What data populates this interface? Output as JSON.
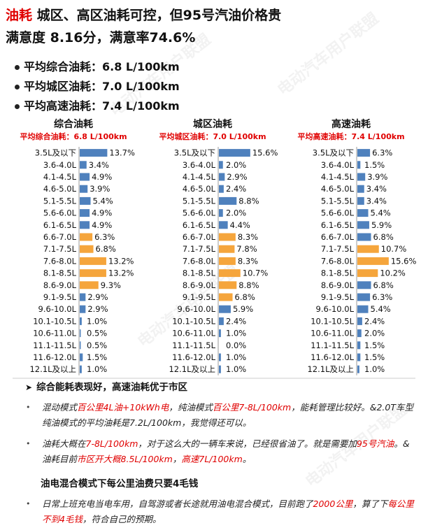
{
  "header": {
    "title_red": "油耗",
    "title_rest": " 城区、高区油耗可控，但95号汽油价格贵",
    "satisfaction": "满意度 8.16分，满意率74.6%"
  },
  "summary": [
    "平均综合油耗：6.8 L/100km",
    "平均城区油耗：7.0 L/100km",
    "平均高速油耗：7.4 L/100km"
  ],
  "watermark": "电动汽车用户联盟",
  "colors": {
    "blue": "#4f81bd",
    "orange": "#f5a53c",
    "red": "#e00000"
  },
  "chart_data": [
    {
      "type": "bar",
      "title": "综合油耗",
      "subtitle": "平均综合油耗：6.8 L/100km",
      "categories": [
        "3.5L及以下",
        "3.6-4.0L",
        "4.1-4.5L",
        "4.6-5.0L",
        "5.1-5.5L",
        "5.6-6.0L",
        "6.1-6.5L",
        "6.6-7.0L",
        "7.1-7.5L",
        "7.6-8.0L",
        "8.1-8.5L",
        "8.6-9.0L",
        "9.1-9.5L",
        "9.6-10.0L",
        "10.1-10.5L",
        "10.6-11.0L",
        "11.1-11.5L",
        "11.6-12.0L",
        "12.1L及以上"
      ],
      "values": [
        13.7,
        3.4,
        4.9,
        3.9,
        5.4,
        4.9,
        4.9,
        6.3,
        6.8,
        13.2,
        13.2,
        9.3,
        2.9,
        2.9,
        1.0,
        0.5,
        0.5,
        1.5,
        1.0
      ],
      "labels": [
        "13.7%",
        "3.4%",
        "4.9%",
        "3.9%",
        "5.4%",
        "4.9%",
        "4.9%",
        "6.3%",
        "6.8%",
        "13.2%",
        "13.2%",
        "9.3%",
        "2.9%",
        "2.9%",
        "1.0%",
        "0.5%",
        "0.5%",
        "1.5%",
        "1.0%"
      ],
      "highlight": [
        7,
        8,
        9,
        10,
        11
      ],
      "ylim": [
        0,
        16
      ]
    },
    {
      "type": "bar",
      "title": "城区油耗",
      "subtitle": "平均城区油耗：7.0 L/100km",
      "categories": [
        "3.5L及以下",
        "3.6-4.0L",
        "4.1-4.5L",
        "4.6-5.0L",
        "5.1-5.5L",
        "5.6-6.0L",
        "6.1-6.5L",
        "6.6-7.0L",
        "7.1-7.5L",
        "7.6-8.0L",
        "8.1-8.5L",
        "8.6-9.0L",
        "9.1-9.5L",
        "9.6-10.0L",
        "10.1-10.5L",
        "10.6-11.0L",
        "11.1-11.5L",
        "11.6-12.0L",
        "12.1L及以上"
      ],
      "values": [
        15.6,
        2.0,
        2.9,
        2.4,
        8.8,
        2.0,
        4.4,
        8.3,
        7.8,
        8.3,
        10.7,
        8.8,
        6.8,
        5.9,
        2.4,
        1.0,
        0.0,
        1.0,
        1.0
      ],
      "labels": [
        "15.6%",
        "2.0%",
        "2.9%",
        "2.4%",
        "8.8%",
        "2.0%",
        "4.4%",
        "8.3%",
        "7.8%",
        "8.3%",
        "10.7%",
        "8.8%",
        "6.8%",
        "5.9%",
        "2.4%",
        "1.0%",
        "0.0%",
        "1.0%",
        "1.0%"
      ],
      "highlight": [
        7,
        8,
        9,
        10,
        11,
        12
      ],
      "ylim": [
        0,
        16
      ]
    },
    {
      "type": "bar",
      "title": "高速油耗",
      "subtitle": "平均高速油耗：7.4 L/100km",
      "categories": [
        "3.5L及以下",
        "3.6-4.0L",
        "4.1-4.5L",
        "4.6-5.0L",
        "5.1-5.5L",
        "5.6-6.0L",
        "6.1-6.5L",
        "6.6-7.0L",
        "7.1-7.5L",
        "7.6-8.0L",
        "8.1-8.5L",
        "8.6-9.0L",
        "9.1-9.5L",
        "9.6-10.0L",
        "10.1-10.5L",
        "10.6-11.0L",
        "11.1-11.5L",
        "11.6-12.0L",
        "12.1L及以上"
      ],
      "values": [
        6.3,
        1.5,
        3.9,
        3.4,
        3.4,
        5.4,
        5.9,
        6.8,
        10.7,
        15.6,
        10.2,
        6.8,
        6.3,
        5.4,
        2.4,
        2.0,
        1.5,
        1.5,
        1.0
      ],
      "labels": [
        "6.3%",
        "1.5%",
        "3.9%",
        "3.4%",
        "3.4%",
        "5.4%",
        "5.9%",
        "6.8%",
        "10.7%",
        "15.6%",
        "10.2%",
        "6.8%",
        "6.3%",
        "5.4%",
        "2.4%",
        "2.0%",
        "1.5%",
        "1.5%",
        "1.0%"
      ],
      "highlight": [
        8,
        9,
        10
      ],
      "ylim": [
        0,
        16
      ]
    }
  ],
  "points": {
    "point1": "综合能耗表现好，高速油耗优于市区",
    "bullet1": [
      {
        "t": "混动模式",
        "r": false
      },
      {
        "t": "百公里4L油+10kWh电",
        "r": true
      },
      {
        "t": "，纯油模式",
        "r": false
      },
      {
        "t": "百公里7-8L/100km",
        "r": true
      },
      {
        "t": "，能耗管理比较好。&2.0T车型纯油模式的平均油耗是7.2L/100km，我觉得还可以。",
        "r": false
      }
    ],
    "bullet2": [
      {
        "t": "油耗大概在",
        "r": false
      },
      {
        "t": "7-8L/100km",
        "r": true
      },
      {
        "t": "，对于这么大的一辆车来说，已经很省油了。就是需要加",
        "r": false
      },
      {
        "t": "95号汽油",
        "r": true
      },
      {
        "t": "。&油耗目前",
        "r": false
      },
      {
        "t": "市区开大概8.5L/100km",
        "r": true
      },
      {
        "t": "，",
        "r": false
      },
      {
        "t": "高速7L/100km",
        "r": true
      },
      {
        "t": "。",
        "r": false
      }
    ],
    "point2": "油电混合模式下每公里油费只要4毛钱",
    "bullet3": [
      {
        "t": "日常上班充电当电车用，自驾游或者长途就用油电混合模式，目前跑了",
        "r": false
      },
      {
        "t": "2000公里",
        "r": true
      },
      {
        "t": "，算了下",
        "r": false
      },
      {
        "t": "每公里不到4毛钱",
        "r": true
      },
      {
        "t": "，符合自己的预期。",
        "r": false
      }
    ]
  }
}
